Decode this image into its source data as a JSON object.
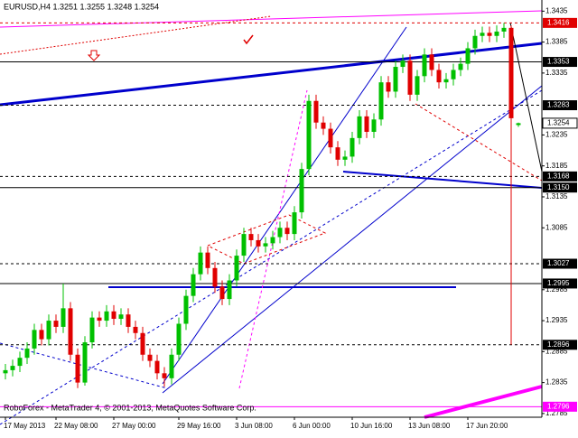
{
  "chart_data": {
    "type": "candlestick",
    "title": "EURUSD,H4  1.3251 1.3255 1.3248 1.3254",
    "footer": "RoboForex - MetaTrader 4, © 2001-2013, MetaQuotes Software Corp.",
    "x": [
      "17 May 2013",
      null,
      null,
      null,
      null,
      null,
      null,
      "22 May 08:00",
      null,
      null,
      null,
      null,
      null,
      null,
      null,
      "27 May 00:00",
      null,
      null,
      null,
      null,
      null,
      null,
      null,
      null,
      "29 May 16:00",
      null,
      null,
      null,
      null,
      null,
      null,
      null,
      "3 Jun 08:00",
      null,
      null,
      null,
      null,
      null,
      null,
      null,
      "6 Jun 00:00",
      null,
      null,
      null,
      null,
      null,
      null,
      null,
      "10 Jun 16:00",
      null,
      null,
      null,
      null,
      null,
      null,
      null,
      "13 Jun 08:00",
      null,
      null,
      null,
      null,
      null,
      null,
      null,
      "17 Jun 20:00",
      null,
      null,
      null,
      null,
      null,
      null,
      null
    ],
    "open": [
      1.285,
      1.2855,
      1.2862,
      1.2875,
      1.289,
      1.292,
      1.2905,
      1.2935,
      1.2925,
      1.2955,
      1.288,
      1.2835,
      1.29,
      1.294,
      1.2935,
      1.295,
      1.2938,
      1.2945,
      1.2925,
      1.2915,
      1.288,
      1.287,
      1.285,
      1.2842,
      1.288,
      1.293,
      1.2975,
      1.301,
      1.3045,
      1.302,
      1.299,
      1.297,
      1.3,
      1.304,
      1.3075,
      1.3065,
      1.3055,
      1.306,
      1.307,
      1.3085,
      1.3075,
      1.311,
      1.318,
      1.329,
      1.3255,
      1.3245,
      1.3215,
      1.3195,
      1.32,
      1.323,
      1.3265,
      1.324,
      1.326,
      1.332,
      1.3305,
      1.3345,
      1.3355,
      1.33,
      1.333,
      1.3365,
      1.334,
      1.332,
      1.3325,
      1.334,
      1.335,
      1.3375,
      1.3395,
      1.34,
      1.3395,
      1.3402,
      1.3408,
      1.3251
    ],
    "high": [
      1.2865,
      1.2872,
      1.2885,
      1.29,
      1.293,
      1.293,
      1.2945,
      1.2945,
      1.2995,
      1.2965,
      1.289,
      1.291,
      1.295,
      1.295,
      1.296,
      1.296,
      1.2955,
      1.2955,
      1.2935,
      1.2925,
      1.289,
      1.288,
      1.286,
      1.289,
      1.294,
      1.2985,
      1.302,
      1.3055,
      1.3055,
      1.303,
      1.3,
      1.301,
      1.305,
      1.3085,
      1.3085,
      1.3075,
      1.307,
      1.308,
      1.3095,
      1.3095,
      1.312,
      1.319,
      1.33,
      1.33,
      1.3265,
      1.3255,
      1.3225,
      1.321,
      1.324,
      1.3275,
      1.3275,
      1.327,
      1.333,
      1.333,
      1.3355,
      1.3365,
      1.3365,
      1.334,
      1.3375,
      1.3375,
      1.335,
      1.3335,
      1.335,
      1.336,
      1.3385,
      1.3405,
      1.341,
      1.341,
      1.3412,
      1.3416,
      1.3412,
      1.3255
    ],
    "low": [
      1.284,
      1.2845,
      1.2852,
      1.2865,
      1.288,
      1.2895,
      1.2895,
      1.2915,
      1.2915,
      1.287,
      1.2826,
      1.283,
      1.289,
      1.2925,
      1.2925,
      1.2928,
      1.2928,
      1.2915,
      1.2905,
      1.287,
      1.286,
      1.284,
      1.2828,
      1.2832,
      1.287,
      1.292,
      1.2965,
      1.3,
      1.301,
      1.298,
      1.296,
      1.296,
      1.299,
      1.303,
      1.3055,
      1.3045,
      1.3045,
      1.305,
      1.306,
      1.3065,
      1.3065,
      1.31,
      1.317,
      1.3245,
      1.3235,
      1.3205,
      1.3185,
      1.3185,
      1.319,
      1.322,
      1.323,
      1.323,
      1.325,
      1.3295,
      1.3295,
      1.3335,
      1.329,
      1.329,
      1.332,
      1.333,
      1.331,
      1.331,
      1.3315,
      1.333,
      1.334,
      1.3365,
      1.3385,
      1.3385,
      1.3385,
      1.3392,
      1.2896,
      1.3248
    ],
    "close": [
      1.2855,
      1.2862,
      1.2875,
      1.289,
      1.292,
      1.2905,
      1.2935,
      1.2925,
      1.2955,
      1.288,
      1.2835,
      1.29,
      1.294,
      1.2935,
      1.295,
      1.2938,
      1.2945,
      1.2925,
      1.2915,
      1.288,
      1.287,
      1.285,
      1.2842,
      1.288,
      1.293,
      1.2975,
      1.301,
      1.3045,
      1.302,
      1.299,
      1.297,
      1.3,
      1.304,
      1.3075,
      1.3065,
      1.3055,
      1.306,
      1.307,
      1.3085,
      1.3075,
      1.311,
      1.318,
      1.329,
      1.3255,
      1.3245,
      1.3215,
      1.3195,
      1.32,
      1.323,
      1.3265,
      1.324,
      1.326,
      1.332,
      1.3305,
      1.3345,
      1.3355,
      1.33,
      1.333,
      1.3365,
      1.334,
      1.332,
      1.3325,
      1.334,
      1.335,
      1.3375,
      1.3395,
      1.34,
      1.3395,
      1.3402,
      1.3408,
      1.3262,
      1.3254
    ],
    "up_color": "#00c000",
    "down_color": "#e00000",
    "ylim": [
      1.2779,
      1.3453
    ],
    "yticks": [
      1.3435,
      1.3385,
      1.3335,
      1.3235,
      1.3185,
      1.3135,
      1.3085,
      1.2985,
      1.2935,
      1.2885,
      1.2835,
      1.2785
    ],
    "levels": [
      {
        "value": 1.3416,
        "label": "1.3416",
        "color": "#e00000",
        "dashed": true
      },
      {
        "value": 1.3353,
        "label": "1.3353",
        "color": "#000000",
        "dashed": false
      },
      {
        "value": 1.3283,
        "label": "1.3283",
        "color": "#000000",
        "dashed": true
      },
      {
        "value": 1.3168,
        "label": "1.3168",
        "color": "#000000",
        "dashed": true
      },
      {
        "value": 1.315,
        "label": "1.3150",
        "color": "#000000",
        "dashed": false
      },
      {
        "value": 1.3027,
        "label": "1.3027",
        "color": "#000000",
        "dashed": true
      },
      {
        "value": 1.2995,
        "label": "1.2995",
        "color": "#000000",
        "dashed": false
      },
      {
        "value": 1.2896,
        "label": "1.2896",
        "color": "#000000",
        "dashed": true
      },
      {
        "value": 1.2796,
        "label": "1.2796",
        "color": "#ff00ff",
        "dashed": false
      }
    ],
    "last_price": {
      "value": 1.3254,
      "label": "1.3254"
    }
  }
}
